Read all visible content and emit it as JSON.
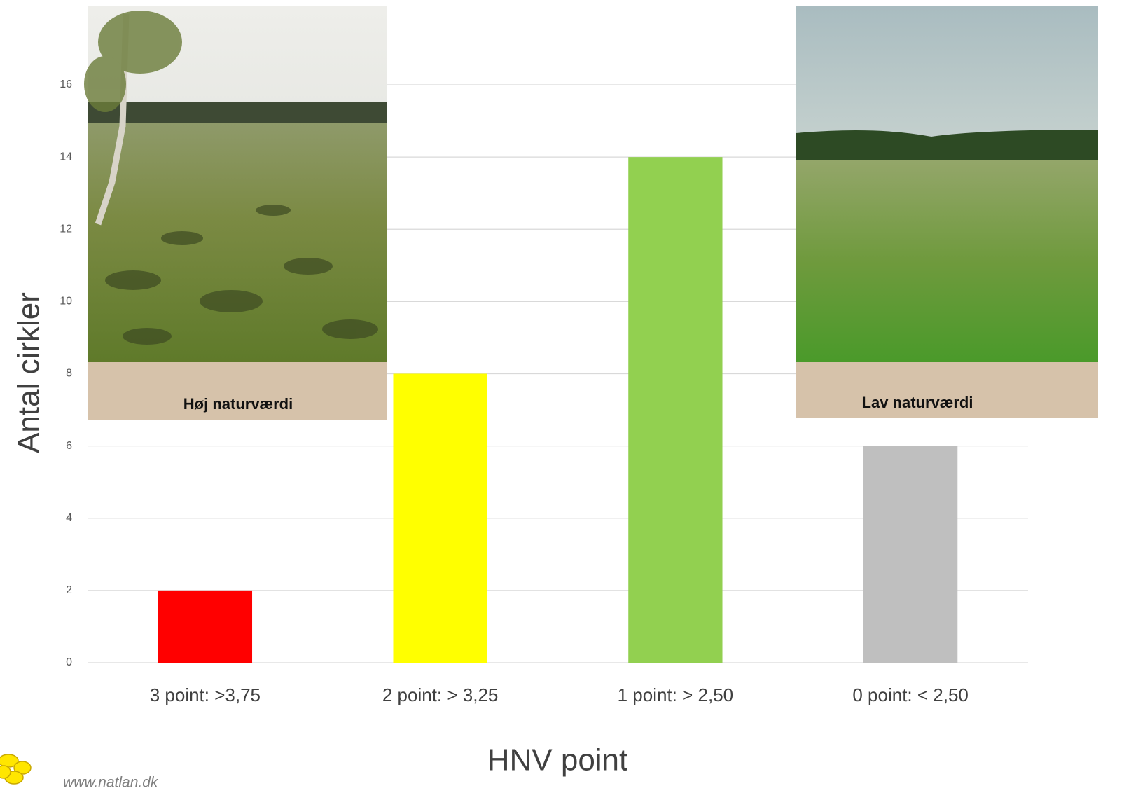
{
  "chart_data": {
    "type": "bar",
    "x_label": "HNV point",
    "y_label": "Antal cirkler",
    "categories": [
      "3 point: >3,75",
      "2 point: > 3,25",
      "1 point: > 2,50",
      "0 point: < 2,50"
    ],
    "values": [
      2,
      8,
      14,
      6
    ],
    "colors": [
      "#ff0000",
      "#ffff00",
      "#92d050",
      "#bfbfbf"
    ],
    "ylim": [
      0,
      16
    ],
    "yticks": [
      0,
      2,
      4,
      6,
      8,
      10,
      12,
      14,
      16
    ],
    "grid": true,
    "images": [
      {
        "caption": "Høj naturværdi"
      },
      {
        "caption": "Lav naturværdi"
      }
    ],
    "source": "www.natlan.dk"
  }
}
